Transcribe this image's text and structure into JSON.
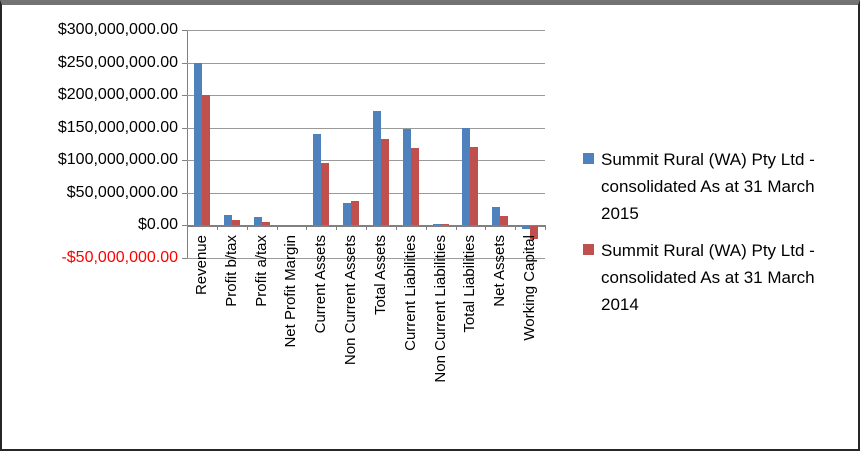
{
  "chart_data": {
    "type": "bar",
    "title": "",
    "xlabel": "",
    "ylabel": "",
    "categories": [
      "Revenue",
      "Profit b/tax",
      "Profit a/tax",
      "Net Profit Margin",
      "Current Assets",
      "Non Current Assets",
      "Total Assets",
      "Current Liabilities",
      "Non Current Liabilities",
      "Total Liabilities",
      "Net Assets",
      "Working Capital"
    ],
    "series": [
      {
        "name": "Summit Rural (WA) Pty Ltd - consolidated As at 31 March 2015",
        "name_lines": [
          "Summit Rural (WA) Pty Ltd -",
          "consolidated As at 31 March",
          "2015"
        ],
        "color": "#4F81BD",
        "values": [
          250000000,
          15000000,
          12000000,
          0,
          140000000,
          34000000,
          175000000,
          147000000,
          2000000,
          149000000,
          27000000,
          -4000000
        ]
      },
      {
        "name": "Summit Rural (WA) Pty Ltd - consolidated As at 31 March 2014",
        "name_lines": [
          "Summit Rural (WA) Pty Ltd -",
          "consolidated As at 31 March",
          "2014"
        ],
        "color": "#C0504D",
        "values": [
          200000000,
          8000000,
          5000000,
          0,
          95000000,
          37000000,
          133000000,
          118000000,
          1500000,
          120000000,
          14000000,
          -20000000
        ]
      }
    ],
    "y_ticks": [
      {
        "label": "$300,000,000.00",
        "value": 300000000,
        "color": "#000000"
      },
      {
        "label": "$250,000,000.00",
        "value": 250000000,
        "color": "#000000"
      },
      {
        "label": "$200,000,000.00",
        "value": 200000000,
        "color": "#000000"
      },
      {
        "label": "$150,000,000.00",
        "value": 150000000,
        "color": "#000000"
      },
      {
        "label": "$100,000,000.00",
        "value": 100000000,
        "color": "#000000"
      },
      {
        "label": "$50,000,000.00",
        "value": 50000000,
        "color": "#000000"
      },
      {
        "label": "$0.00",
        "value": 0,
        "color": "#000000"
      },
      {
        "label": "-$50,000,000.00",
        "value": -50000000,
        "color": "#FF0000"
      }
    ],
    "ylim": [
      -50000000,
      300000000
    ],
    "grid": true,
    "legend_position": "right"
  },
  "colors": {
    "series_2015": "#4F81BD",
    "series_2014": "#C0504D",
    "gridline": "#9a9a9a",
    "axis": "#808080",
    "negative_tick_label": "#FF0000",
    "background": "#ffffff",
    "border": "#262626"
  }
}
